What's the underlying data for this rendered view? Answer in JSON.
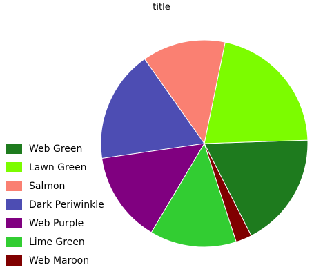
{
  "chart_data": {
    "type": "pie",
    "title": "title",
    "series": [
      {
        "name": "Web Green",
        "value": 17.3,
        "color": "#1e7b1e"
      },
      {
        "name": "Lawn Green",
        "value": 20.4,
        "color": "#7cfc00"
      },
      {
        "name": "Salmon",
        "value": 12.5,
        "color": "#fa8072"
      },
      {
        "name": "Dark Periwinkle",
        "value": 16.8,
        "color": "#4d4db3"
      },
      {
        "name": "Web Purple",
        "value": 13.6,
        "color": "#800080"
      },
      {
        "name": "Lime Green",
        "value": 13.0,
        "color": "#32cd32"
      },
      {
        "name": "Web Maroon",
        "value": 2.4,
        "color": "#800000"
      }
    ],
    "legend_position": "left"
  }
}
